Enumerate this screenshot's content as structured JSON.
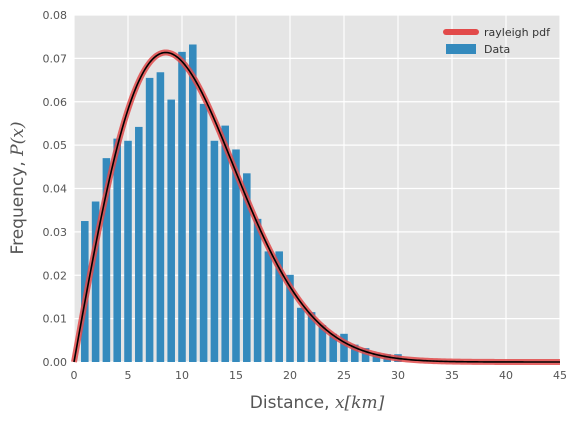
{
  "chart_data": {
    "type": "bar",
    "title": "",
    "xlabel": "Distance, x[km]",
    "xlabel_prefix": "Distance, ",
    "xlabel_math": "x[km]",
    "ylabel": "Frequency, P(x)",
    "ylabel_prefix": "Frequency, ",
    "ylabel_math": "P(x)",
    "xlim": [
      0,
      45
    ],
    "ylim": [
      0,
      0.08
    ],
    "xticks": [
      0,
      5,
      10,
      15,
      20,
      25,
      30,
      35,
      40,
      45
    ],
    "yticks": [
      "0.00",
      "0.01",
      "0.02",
      "0.03",
      "0.04",
      "0.05",
      "0.06",
      "0.07",
      "0.08"
    ],
    "grid": true,
    "legend_position": "top-right",
    "bar_width": 0.7,
    "series": [
      {
        "name": "Data",
        "kind": "histogram",
        "color": "#348ABD",
        "x": [
          1,
          2,
          3,
          4,
          5,
          6,
          7,
          8,
          9,
          10,
          11,
          12,
          13,
          14,
          15,
          16,
          17,
          18,
          19,
          20,
          21,
          22,
          23,
          24,
          25,
          26,
          27,
          28,
          29,
          30
        ],
        "values": [
          0.0325,
          0.037,
          0.047,
          0.0515,
          0.051,
          0.0542,
          0.0655,
          0.0668,
          0.0605,
          0.0715,
          0.0732,
          0.0595,
          0.051,
          0.0545,
          0.049,
          0.0435,
          0.033,
          0.0255,
          0.0255,
          0.0201,
          0.0125,
          0.0115,
          0.0085,
          0.0065,
          0.0065,
          0.004,
          0.0032,
          0.002,
          0.0018,
          0.0018
        ]
      },
      {
        "name": "rayleigh pdf",
        "kind": "line",
        "color": "#E24A4A",
        "inner_color": "#000000",
        "sigma": 8.5,
        "x_range": [
          0,
          45
        ]
      }
    ]
  }
}
